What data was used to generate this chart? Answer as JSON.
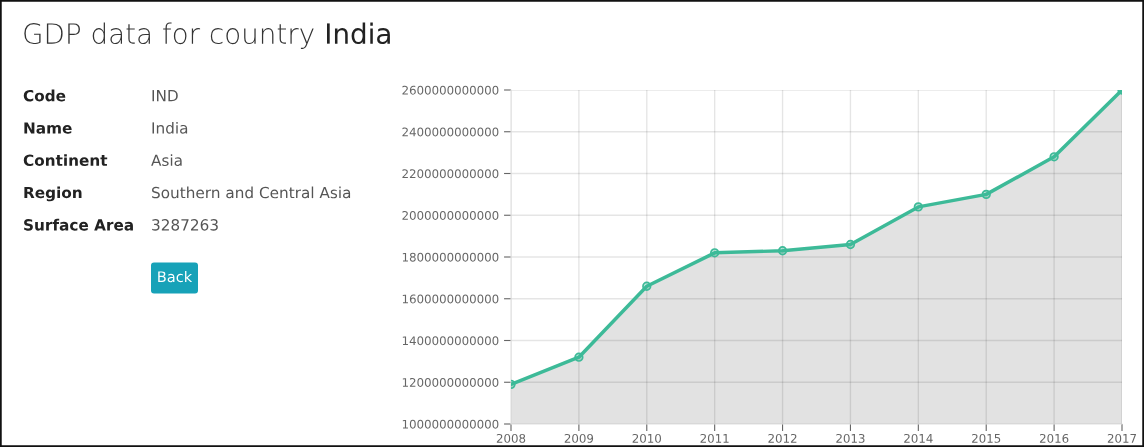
{
  "chart_data": [
    {
      "type": "other",
      "title": "GDP data for country India",
      "annotations": [
        "Code",
        "IND",
        "Name",
        "India",
        "Continent",
        "Asia",
        "Region",
        "Southern and Central Asia",
        "Surface Area",
        "3287263",
        "Back"
      ]
    },
    {
      "type": "area",
      "categories": [
        "2008",
        "2009",
        "2010",
        "2011",
        "2012",
        "2013",
        "2014",
        "2015",
        "2016",
        "2017"
      ],
      "series": [
        {
          "color": "#3dba98",
          "values": [
            1190000000000,
            1320000000000,
            1660000000000,
            1820000000000,
            1830000000000,
            1860000000000,
            2040000000000,
            2100000000000,
            2280000000000,
            2600000000000
          ]
        }
      ],
      "ylim": [
        1000000000000,
        2600000000000
      ],
      "yticks": [
        1000000000000,
        1200000000000,
        1400000000000,
        1600000000000,
        1800000000000,
        2000000000000,
        2200000000000,
        2400000000000,
        2600000000000
      ],
      "grid": true,
      "marker": "circle",
      "legend": false
    }
  ]
}
